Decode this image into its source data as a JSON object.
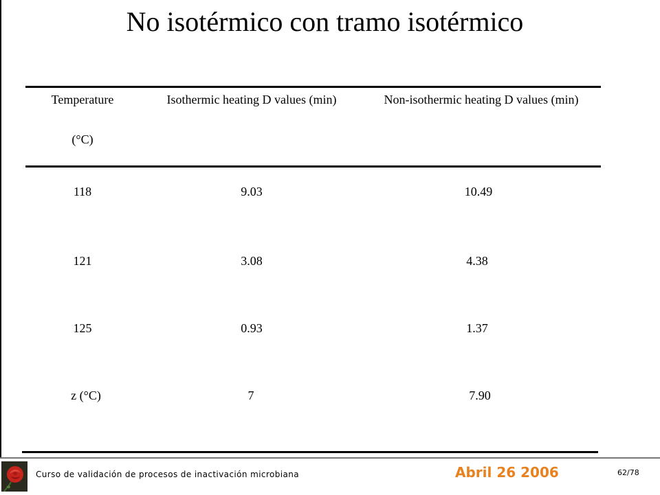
{
  "title": "No isotérmico con tramo isotérmico",
  "table": {
    "headers": {
      "temperature": "Temperature",
      "temperature_unit": "(°C)",
      "isothermic": "Isothermic heating D values (min)",
      "non_isothermic": "Non-isothermic heating D values (min)"
    },
    "rows": [
      {
        "temperature": "118",
        "isothermic": "9.03",
        "non_isothermic": "10.49"
      },
      {
        "temperature": "121",
        "isothermic": "3.08",
        "non_isothermic": "4.38"
      },
      {
        "temperature": "125",
        "isothermic": "0.93",
        "non_isothermic": "1.37"
      },
      {
        "temperature": "z (°C)",
        "isothermic": "7",
        "non_isothermic": "7.90"
      }
    ]
  },
  "footer": {
    "course": "Curso de validación de procesos de inactivación microbiana",
    "date": "Abril 26 2006",
    "page": "62/78",
    "logo_icon": "rose-icon",
    "date_color": "#e8821f"
  }
}
